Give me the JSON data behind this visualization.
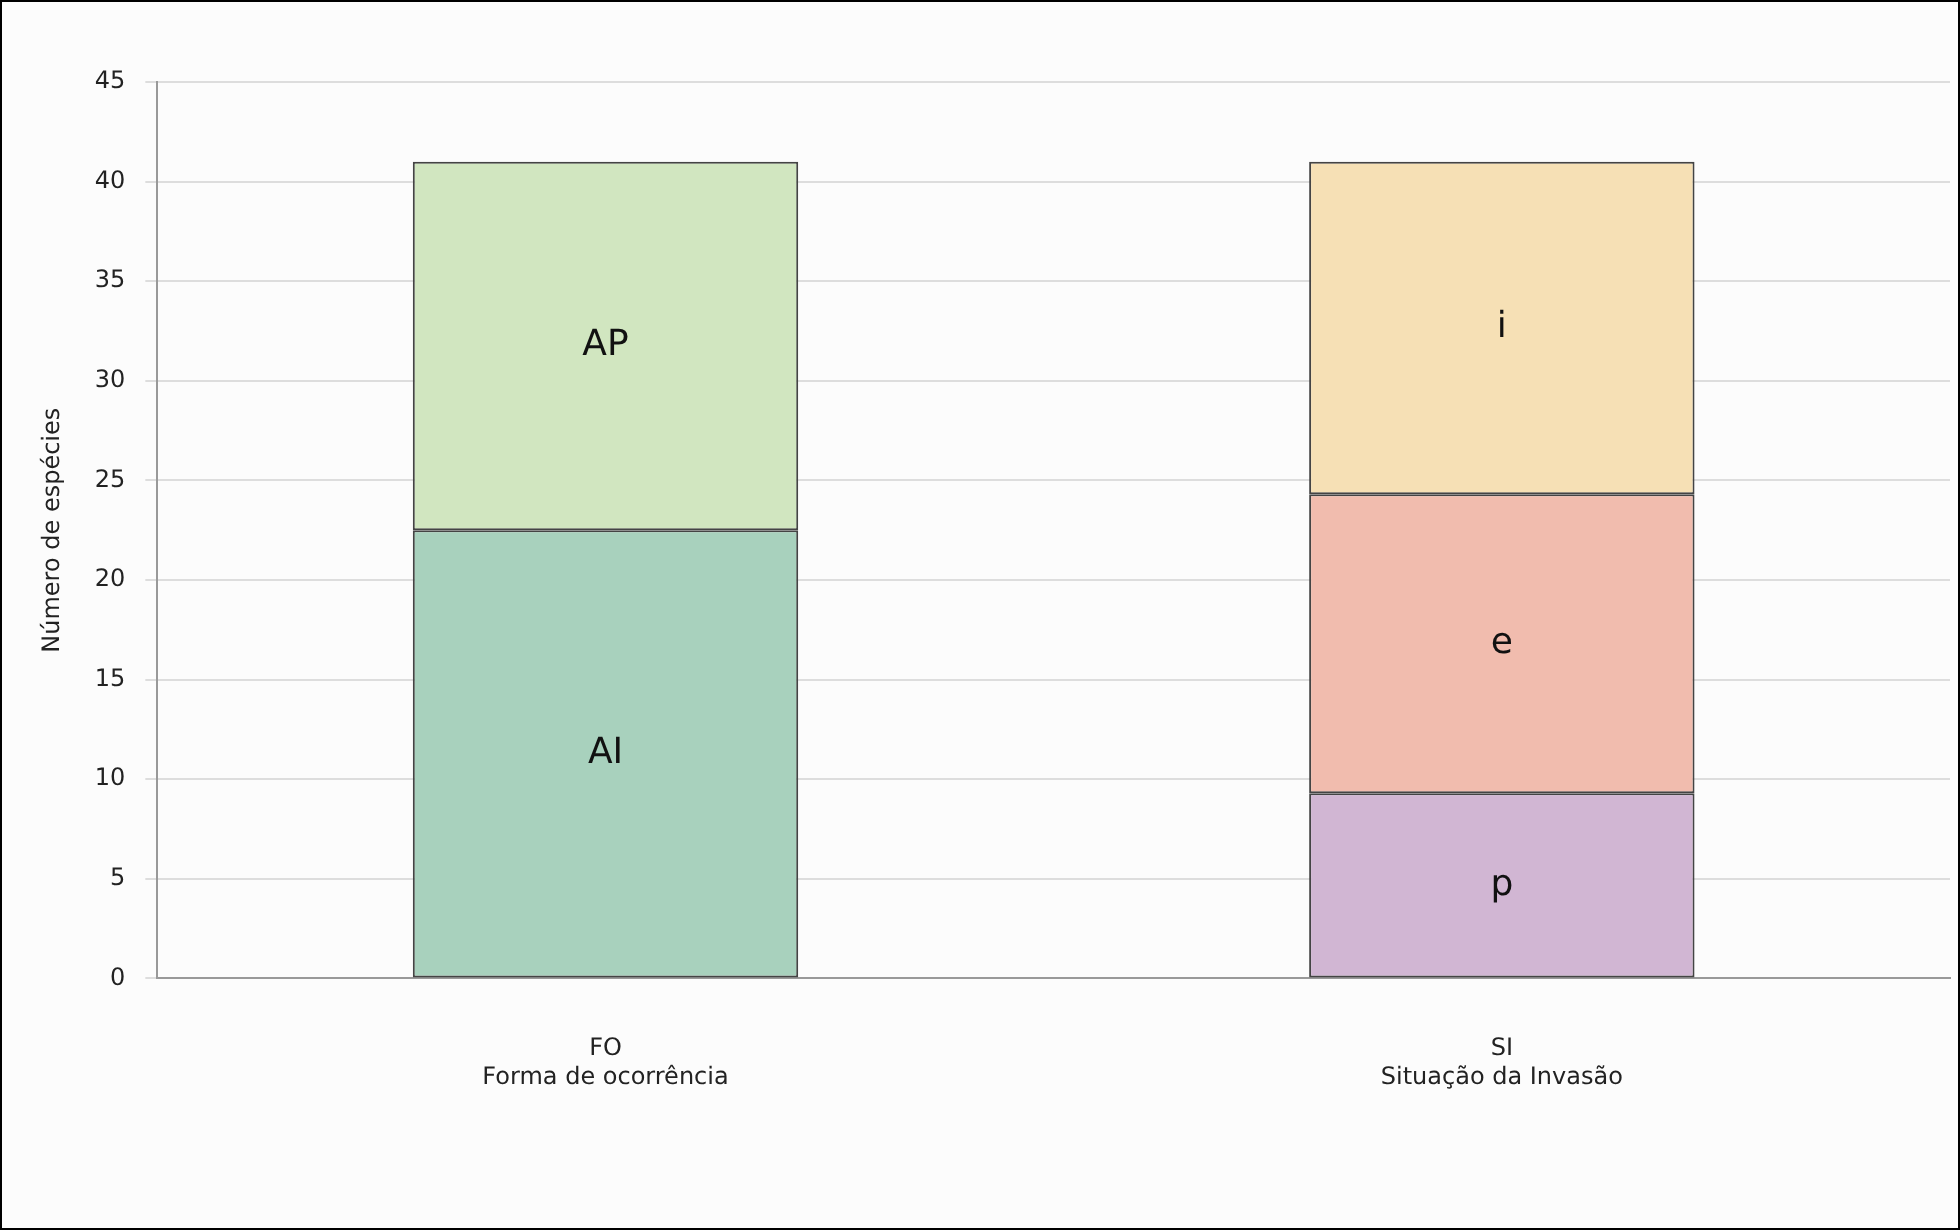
{
  "chart_data": {
    "type": "bar",
    "stacked": true,
    "ylabel": "Número de espécies",
    "categories": [
      "FO\nForma de ocorrência",
      "SI\nSituação da Invasão"
    ],
    "series": [
      {
        "name": "AI",
        "color": "#a8d1bd",
        "values": [
          22.5,
          null
        ]
      },
      {
        "name": "AP",
        "color": "#d1e6c0",
        "values": [
          18.5,
          null
        ]
      },
      {
        "name": "p",
        "color": "#d1b6d3",
        "values": [
          null,
          9.3
        ]
      },
      {
        "name": "e",
        "color": "#f1bcae",
        "values": [
          null,
          15
        ]
      },
      {
        "name": "i",
        "color": "#f6e0b5",
        "values": [
          null,
          16.7
        ]
      }
    ],
    "ylim": [
      0,
      45
    ],
    "yticks": [
      0,
      5,
      10,
      15,
      20,
      25,
      30,
      35,
      40,
      45
    ],
    "grid": "y",
    "legend": false
  }
}
